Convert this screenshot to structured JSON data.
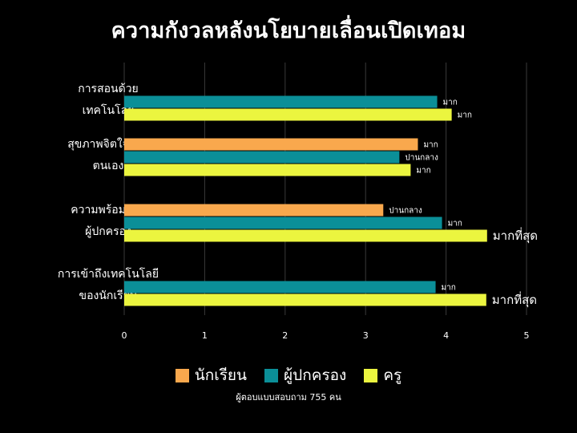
{
  "chart_data": {
    "type": "bar",
    "orientation": "horizontal",
    "title": "ความกังวลหลังนโยบายเลื่อนเปิดเทอม",
    "categories": [
      [
        "การสอนด้วย",
        "เทคโนโลยี"
      ],
      [
        "สุขภาพจิตใจของ",
        "ตนเอง"
      ],
      [
        "ความพร้อมของ",
        "ผู้ปกครอง"
      ],
      [
        "การเข้าถึงเทคโนโลยี",
        "ของนักเรียน"
      ]
    ],
    "series": [
      {
        "name": "นักเรียน",
        "color": "#f9a84d",
        "values": [
          null,
          3.65,
          3.22,
          null
        ],
        "labels": [
          "",
          "มาก",
          "ปานกลาง",
          ""
        ]
      },
      {
        "name": "ผู้ปกครอง",
        "color": "#0b8f98",
        "values": [
          3.89,
          3.42,
          3.95,
          3.87
        ],
        "labels": [
          "มาก",
          "ปานกลาง",
          "มาก",
          "มาก"
        ]
      },
      {
        "name": "ครู",
        "color": "#ebf53f",
        "values": [
          4.07,
          3.56,
          4.51,
          4.5
        ],
        "labels": [
          "มาก",
          "มาก",
          "มากที่สุด",
          "มากที่สุด"
        ]
      }
    ],
    "xlim": [
      0,
      5
    ],
    "xticks": [
      "0",
      "1",
      "2",
      "3",
      "4",
      "5"
    ],
    "grid": true,
    "legend_position": "bottom",
    "footnote": "ผู้ตอบแบบสอบถาม 755 คน"
  }
}
